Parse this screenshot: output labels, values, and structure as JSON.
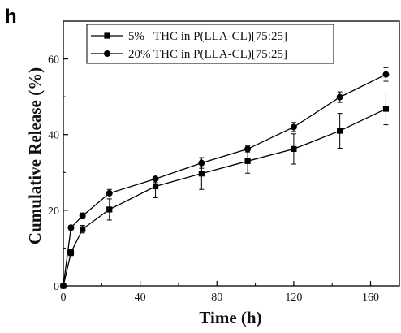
{
  "panel_label": "h",
  "chart_data": {
    "type": "line",
    "title": "",
    "xlabel": "Time (h)",
    "ylabel": "Cumulative Release (%)",
    "xlim": [
      0,
      175
    ],
    "ylim": [
      0,
      70
    ],
    "xticks": [
      0,
      40,
      80,
      120,
      160
    ],
    "yticks": [
      0,
      20,
      40,
      60
    ],
    "legend_position": "top-left",
    "series": [
      {
        "name": "5%   THC in P(LLA-CL)[75:25]",
        "marker": "square",
        "x": [
          0,
          4,
          10,
          24,
          48,
          72,
          96,
          120,
          144,
          168
        ],
        "y": [
          0,
          8.8,
          15.0,
          20.2,
          26.3,
          29.7,
          33.0,
          36.2,
          41.0,
          46.8
        ],
        "err": [
          0,
          0.8,
          1.0,
          2.8,
          3.0,
          4.2,
          3.2,
          4.0,
          4.6,
          4.2
        ]
      },
      {
        "name": "20% THC in P(LLA-CL)[75:25]",
        "marker": "circle",
        "x": [
          0,
          4,
          10,
          24,
          48,
          72,
          96,
          120,
          144,
          168
        ],
        "y": [
          0,
          15.4,
          18.5,
          24.5,
          28.3,
          32.5,
          36.2,
          42.0,
          49.9,
          55.9
        ],
        "err": [
          0,
          0.6,
          0.8,
          1.0,
          1.0,
          1.4,
          0.8,
          1.2,
          1.4,
          1.8
        ]
      }
    ]
  }
}
